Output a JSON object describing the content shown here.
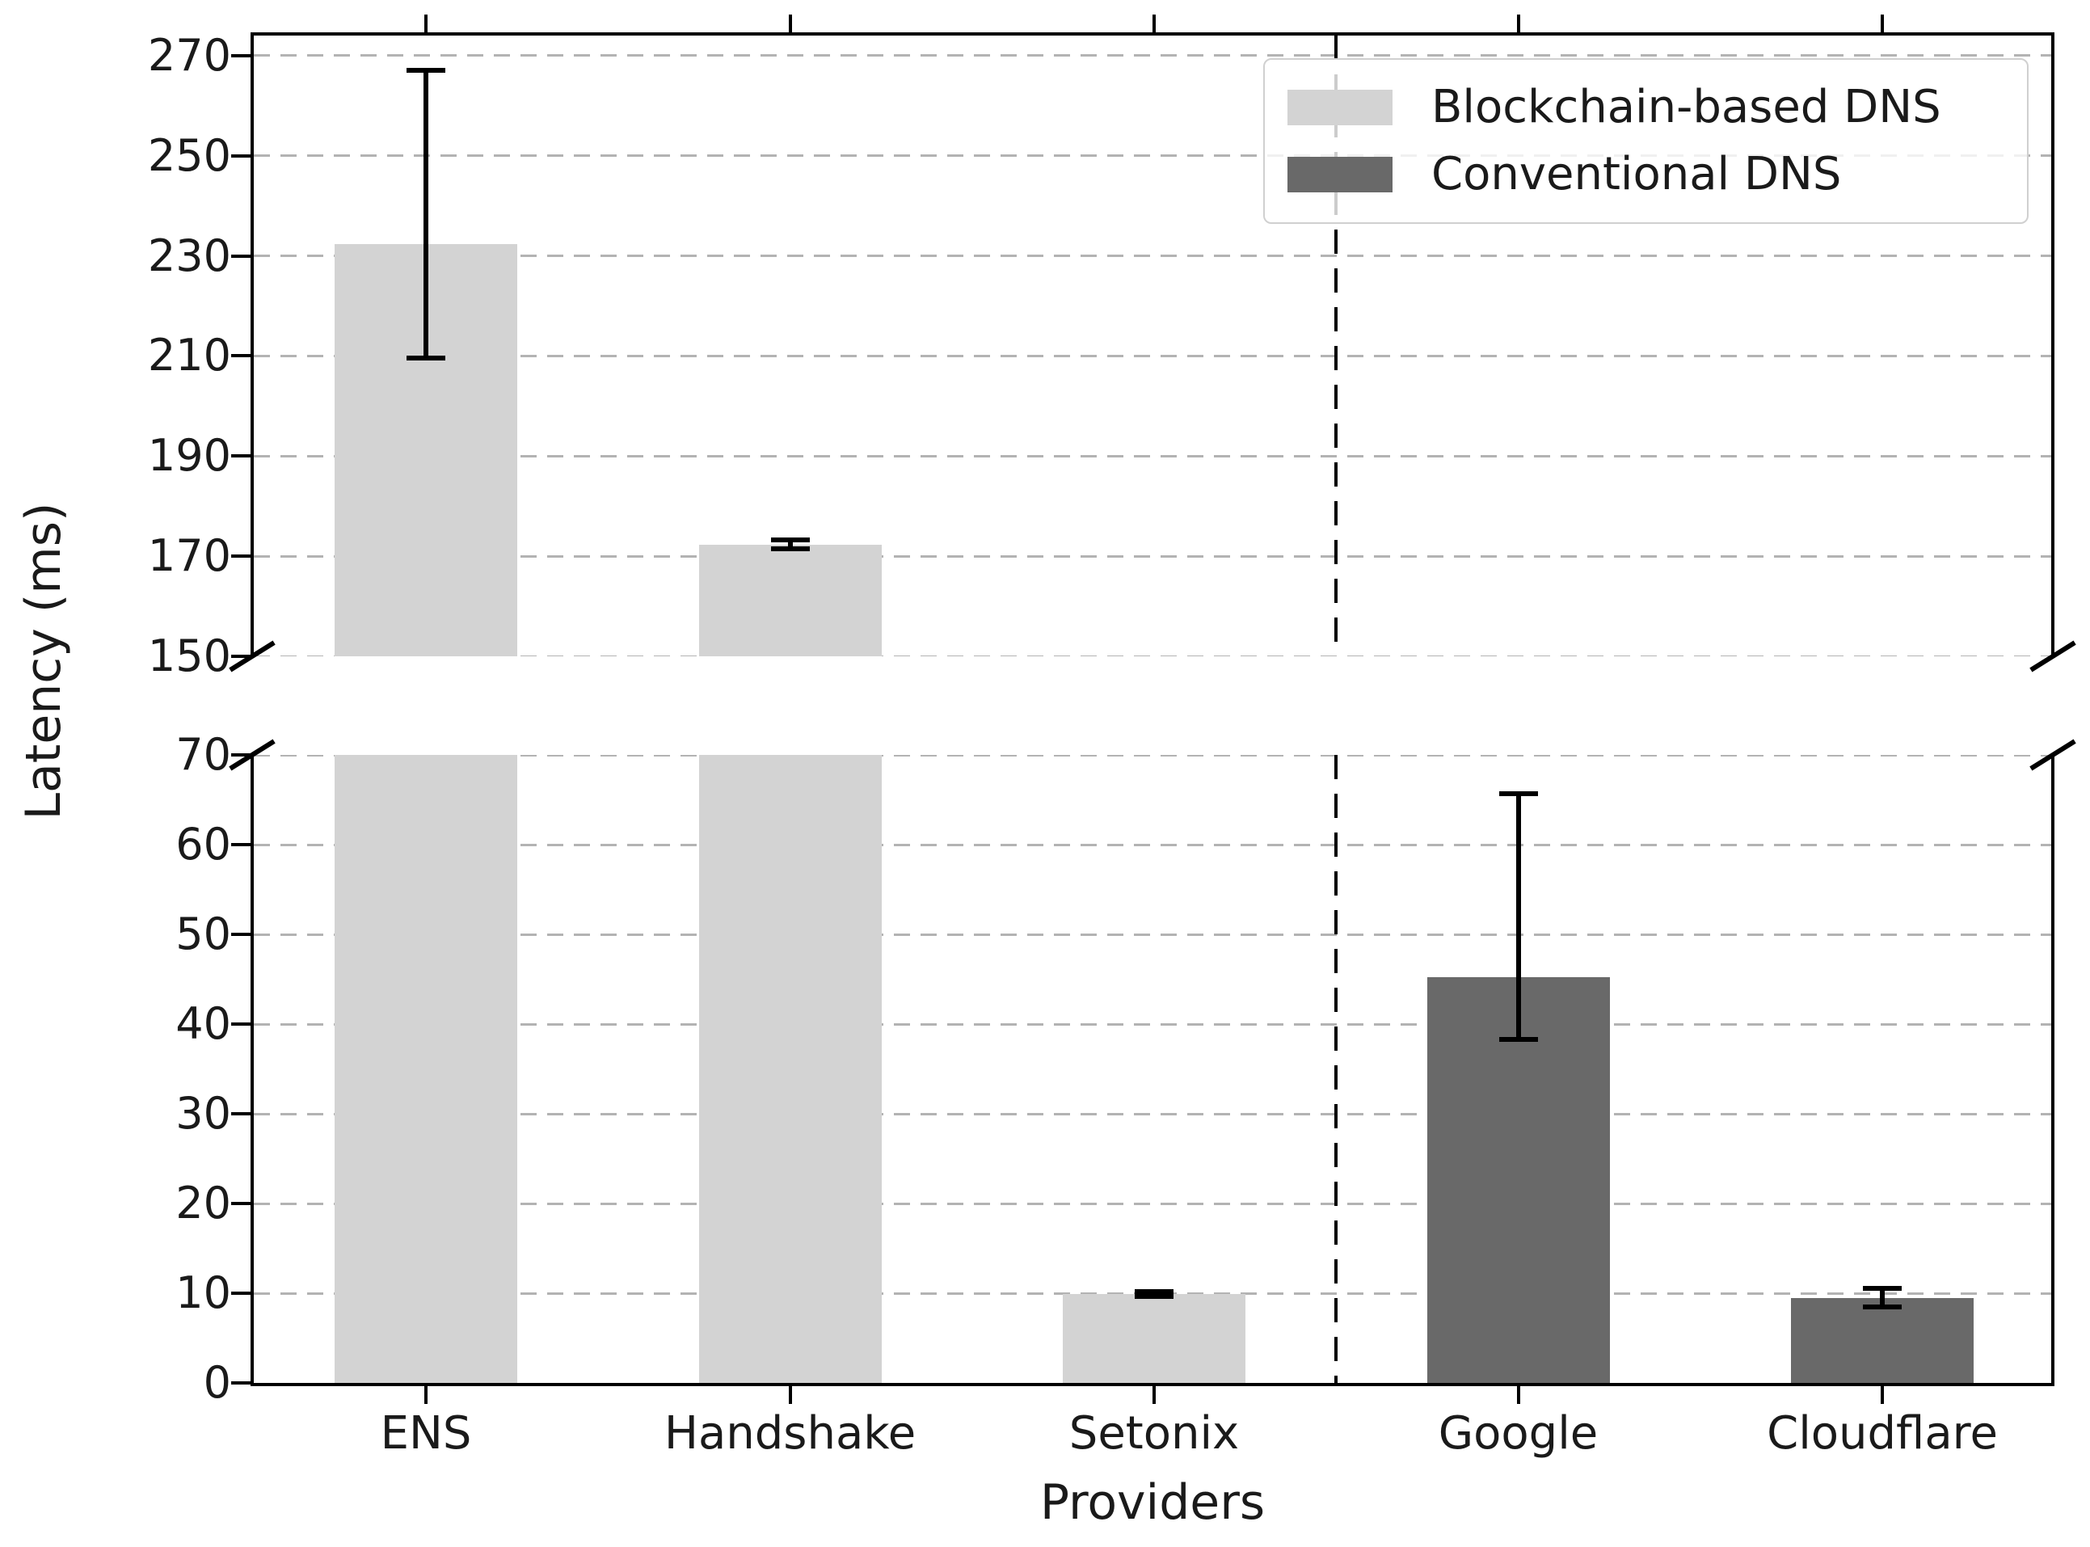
{
  "chart_data": {
    "type": "bar",
    "title": "",
    "xlabel": "Providers",
    "ylabel": "Latency (ms)",
    "unit": "ms",
    "categories": [
      "ENS",
      "Handshake",
      "Setonix",
      "Google",
      "Cloudflare"
    ],
    "values": [
      232.3,
      172.3,
      9.9,
      45.2,
      9.5
    ],
    "error_low": [
      209.5,
      171.4,
      9.65,
      38.3,
      8.5
    ],
    "error_high": [
      267.0,
      173.2,
      10.15,
      65.7,
      10.5
    ],
    "groups": [
      "blockchain",
      "blockchain",
      "blockchain",
      "conventional",
      "conventional"
    ],
    "legend": [
      {
        "label": "Blockchain-based DNS",
        "color": "#d3d3d3",
        "group": "blockchain"
      },
      {
        "label": "Conventional DNS",
        "color": "#696969",
        "group": "conventional"
      }
    ],
    "legend_position": "upper right",
    "grid": {
      "axis": "y",
      "style": "dashed",
      "color": "#b3b3b3"
    },
    "error_bar_color": "#000000",
    "separator": {
      "style": "dashed",
      "color": "#000000",
      "between": [
        "Setonix",
        "Google"
      ]
    },
    "axis_break": {
      "upper_panel": {
        "ylim": [
          150,
          274
        ],
        "yticks": [
          270,
          250,
          230,
          210,
          190,
          170,
          150
        ]
      },
      "lower_panel": {
        "ylim": [
          0,
          70
        ],
        "yticks": [
          70,
          60,
          50,
          40,
          30,
          20,
          10,
          0
        ]
      }
    }
  }
}
